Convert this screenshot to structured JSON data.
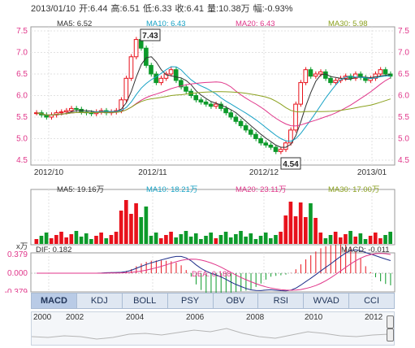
{
  "quote_header": {
    "date": "2013/01/10",
    "open_label": "开:",
    "open": "6.44",
    "high_label": "高:",
    "high": "6.51",
    "low_label": "低:",
    "low": "6.33",
    "close_label": "收:",
    "close": "6.41",
    "volume_label": "量:",
    "volume": "10.38万",
    "change_label": "幅:",
    "change": "-0.93%"
  },
  "price_panel": {
    "ma_legend": [
      {
        "label": "MA5: 6.52",
        "color": "#333333"
      },
      {
        "label": "MA10: 6.43",
        "color": "#17a2c5"
      },
      {
        "label": "MA20: 6.43",
        "color": "#e0368a"
      },
      {
        "label": "MA30: 5.98",
        "color": "#8ba11e"
      }
    ],
    "y_ticks": [
      "7.5",
      "7.0",
      "6.5",
      "6.0",
      "5.5",
      "5.0",
      "4.5"
    ],
    "x_ticks": [
      "2012/10",
      "2012/11",
      "2012/12",
      "2013/01"
    ],
    "max_callout": "7.43",
    "min_callout": "4.54"
  },
  "volume_panel": {
    "ma_legend": [
      {
        "label": "MA5: 19.16万",
        "color": "#333333"
      },
      {
        "label": "MA10: 18.21万",
        "color": "#17a2c5"
      },
      {
        "label": "MA20: 23.11万",
        "color": "#e0368a"
      },
      {
        "label": "MA30: 17.00万",
        "color": "#8ba11e"
      }
    ],
    "unit_label": "x万"
  },
  "macd_panel": {
    "dif_label": "DIF: 0.182",
    "dea_label": "DEA: 0.188",
    "macd_label": "MACD: -0.011",
    "y_ticks": [
      "0.379",
      "0.000",
      "-0.379"
    ]
  },
  "indicator_tabs": [
    "MACD",
    "KDJ",
    "BOLL",
    "PSY",
    "OBV",
    "RSI",
    "WVAD",
    "CCI"
  ],
  "active_tab": "MACD",
  "navigator": {
    "years": [
      "2000",
      "2002",
      "2004",
      "2006",
      "2008",
      "2010",
      "2012"
    ]
  },
  "colors": {
    "up": "#e8111b",
    "down": "#0c9a2a",
    "ma5": "#333333",
    "ma10": "#17a2c5",
    "ma20": "#e0368a",
    "ma30": "#8ba11e",
    "grid": "#cccccc",
    "axis_text": "#e0368a"
  }
}
